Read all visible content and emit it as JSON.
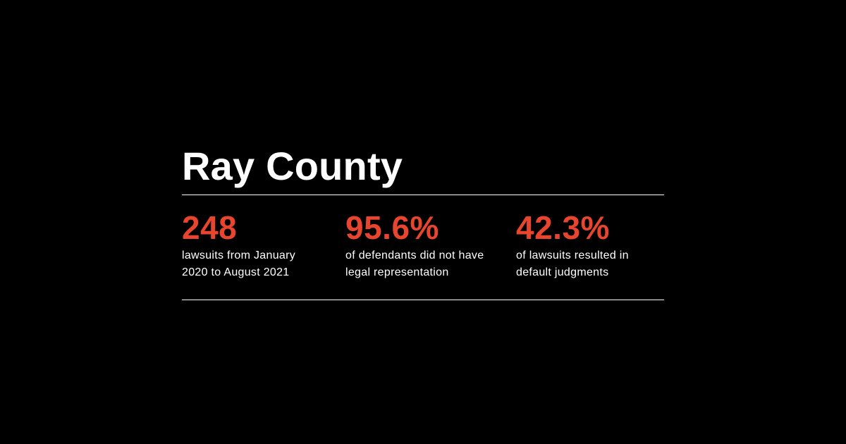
{
  "colors": {
    "background": "#000000",
    "text": "#ffffff",
    "accent": "#e8452f",
    "rule": "#ffffff"
  },
  "title": "Ray County",
  "stats": [
    {
      "value": "248",
      "line1": "lawsuits from January",
      "line2": "2020 to August 2021"
    },
    {
      "value": "95.6%",
      "line1": "of defendants did not have",
      "line2": "legal representation"
    },
    {
      "value": "42.3%",
      "line1": "of lawsuits resulted in",
      "line2": "default judgments"
    }
  ]
}
